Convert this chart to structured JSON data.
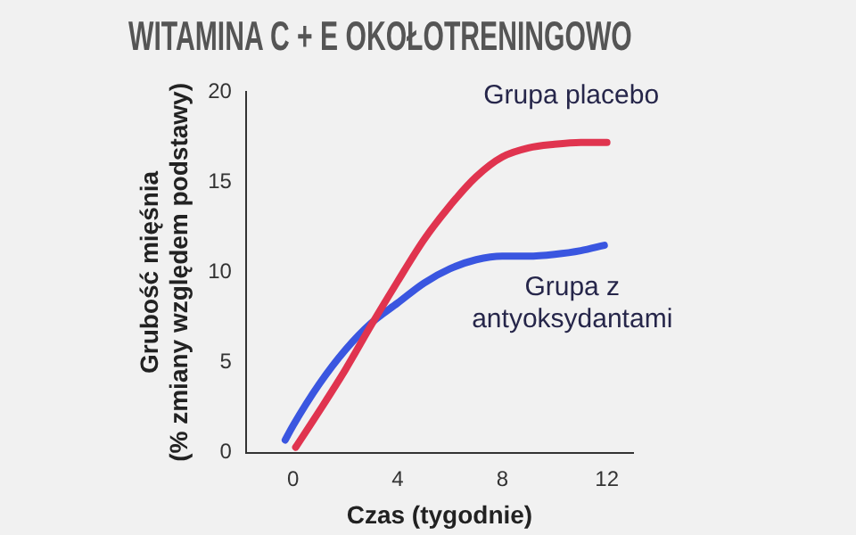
{
  "chart_data": {
    "type": "line",
    "title": "WITAMINA C + E OKOŁOTRENINGOWO",
    "xlabel": "Czas (tygodnie)",
    "ylabel": "Grubość mięśnia\n(% zmiany względem podstawy)",
    "xlim": [
      -1.8,
      13
    ],
    "xticks": [
      0,
      4,
      8,
      12
    ],
    "ylim": [
      0,
      20
    ],
    "yticks": [
      0,
      5,
      10,
      15,
      20
    ],
    "grid": false,
    "legend": false,
    "marker": "none",
    "line_style": "solid",
    "series": [
      {
        "name": "Grupa placebo",
        "color": "#e0344f",
        "x": [
          0.1,
          1,
          2,
          3,
          4,
          5,
          6,
          7,
          8,
          9,
          10,
          11,
          12
        ],
        "values": [
          0.3,
          2.3,
          4.6,
          7.1,
          9.5,
          11.8,
          13.7,
          15.3,
          16.4,
          16.9,
          17.1,
          17.2,
          17.2
        ]
      },
      {
        "name": "Grupa z antyoksydantami",
        "color": "#3a56e0",
        "x": [
          -0.3,
          0,
          1,
          2,
          3,
          4,
          5,
          6,
          7,
          8,
          9,
          10,
          11,
          11.9
        ],
        "values": [
          0.7,
          1.5,
          3.8,
          5.7,
          7.2,
          8.3,
          9.4,
          10.2,
          10.7,
          10.9,
          10.9,
          11,
          11.2,
          11.5
        ]
      }
    ]
  }
}
